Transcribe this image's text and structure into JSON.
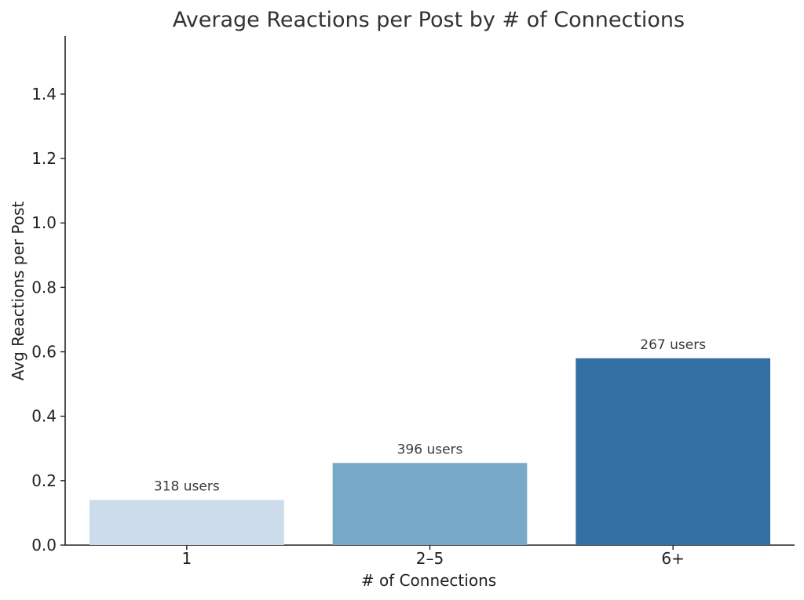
{
  "chart_data": {
    "type": "bar",
    "title": "Average Reactions per Post by # of Connections",
    "xlabel": "# of Connections",
    "ylabel": "Avg Reactions per Post",
    "categories": [
      "1",
      "2–5",
      "6+"
    ],
    "values": [
      0.14,
      0.255,
      0.58
    ],
    "bar_labels": [
      "318 users",
      "396 users",
      "267 users"
    ],
    "colors": [
      "#ccdcea",
      "#79a9c8",
      "#3470a3"
    ],
    "ylim": [
      0,
      1.58
    ],
    "yticks": [
      0.0,
      0.2,
      0.4,
      0.6,
      0.8,
      1.0,
      1.2,
      1.4
    ],
    "ytick_labels": [
      "0.0",
      "0.2",
      "0.4",
      "0.6",
      "0.8",
      "1.0",
      "1.2",
      "1.4"
    ],
    "grid": false,
    "legend": "none"
  }
}
